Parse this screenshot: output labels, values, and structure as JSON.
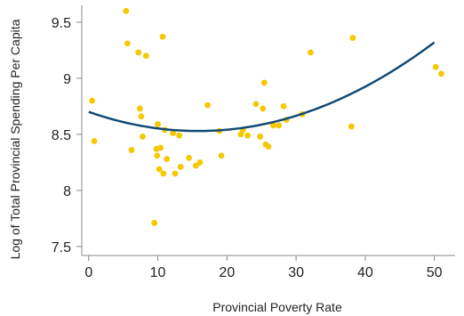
{
  "chart_data": {
    "type": "scatter",
    "xlabel": "Provincial Poverty Rate",
    "ylabel": "Log of Total Provincial Spending Per Capita",
    "xlim": [
      -1,
      53
    ],
    "ylim": [
      7.42,
      9.65
    ],
    "x_ticks": [
      0,
      10,
      20,
      30,
      40,
      50
    ],
    "y_ticks": [
      7.5,
      8,
      8.5,
      9,
      9.5
    ],
    "x_tick_labels": [
      "0",
      "10",
      "20",
      "30",
      "40",
      "50"
    ],
    "y_tick_labels": [
      "7.5",
      "8",
      "8.5",
      "9",
      "9.5"
    ],
    "grid": false,
    "point_color": "#f5c800",
    "curve_color": "#134a73",
    "points": [
      {
        "x": 0.5,
        "y": 8.8
      },
      {
        "x": 0.8,
        "y": 8.44
      },
      {
        "x": 5.4,
        "y": 9.6
      },
      {
        "x": 5.6,
        "y": 9.31
      },
      {
        "x": 6.2,
        "y": 8.36
      },
      {
        "x": 7.2,
        "y": 9.23
      },
      {
        "x": 7.4,
        "y": 8.73
      },
      {
        "x": 7.6,
        "y": 8.66
      },
      {
        "x": 7.8,
        "y": 8.48
      },
      {
        "x": 8.3,
        "y": 9.2
      },
      {
        "x": 9.5,
        "y": 7.71
      },
      {
        "x": 9.8,
        "y": 8.37
      },
      {
        "x": 9.9,
        "y": 8.31
      },
      {
        "x": 10.0,
        "y": 8.59
      },
      {
        "x": 10.2,
        "y": 8.19
      },
      {
        "x": 10.4,
        "y": 8.38
      },
      {
        "x": 10.7,
        "y": 9.37
      },
      {
        "x": 10.8,
        "y": 8.15
      },
      {
        "x": 11.0,
        "y": 8.54
      },
      {
        "x": 11.3,
        "y": 8.28
      },
      {
        "x": 12.2,
        "y": 8.51
      },
      {
        "x": 12.5,
        "y": 8.15
      },
      {
        "x": 13.1,
        "y": 8.49
      },
      {
        "x": 13.3,
        "y": 8.21
      },
      {
        "x": 14.5,
        "y": 8.29
      },
      {
        "x": 15.5,
        "y": 8.22
      },
      {
        "x": 16.1,
        "y": 8.25
      },
      {
        "x": 17.2,
        "y": 8.76
      },
      {
        "x": 18.9,
        "y": 8.53
      },
      {
        "x": 19.2,
        "y": 8.31
      },
      {
        "x": 22.0,
        "y": 8.5
      },
      {
        "x": 22.3,
        "y": 8.54
      },
      {
        "x": 23.0,
        "y": 8.49
      },
      {
        "x": 24.2,
        "y": 8.77
      },
      {
        "x": 24.8,
        "y": 8.48
      },
      {
        "x": 25.2,
        "y": 8.73
      },
      {
        "x": 25.4,
        "y": 8.96
      },
      {
        "x": 25.6,
        "y": 8.41
      },
      {
        "x": 26.0,
        "y": 8.39
      },
      {
        "x": 26.7,
        "y": 8.58
      },
      {
        "x": 27.5,
        "y": 8.58
      },
      {
        "x": 28.2,
        "y": 8.75
      },
      {
        "x": 28.6,
        "y": 8.63
      },
      {
        "x": 30.9,
        "y": 8.68
      },
      {
        "x": 32.1,
        "y": 9.23
      },
      {
        "x": 38.0,
        "y": 8.57
      },
      {
        "x": 38.2,
        "y": 9.36
      },
      {
        "x": 50.2,
        "y": 9.1
      },
      {
        "x": 51.0,
        "y": 9.04
      }
    ],
    "fit_curve": {
      "type": "quadratic",
      "x_range": [
        0,
        50
      ],
      "points": [
        {
          "x": 0,
          "y": 8.7
        },
        {
          "x": 16.5,
          "y": 8.53
        },
        {
          "x": 50,
          "y": 9.32
        }
      ]
    }
  }
}
